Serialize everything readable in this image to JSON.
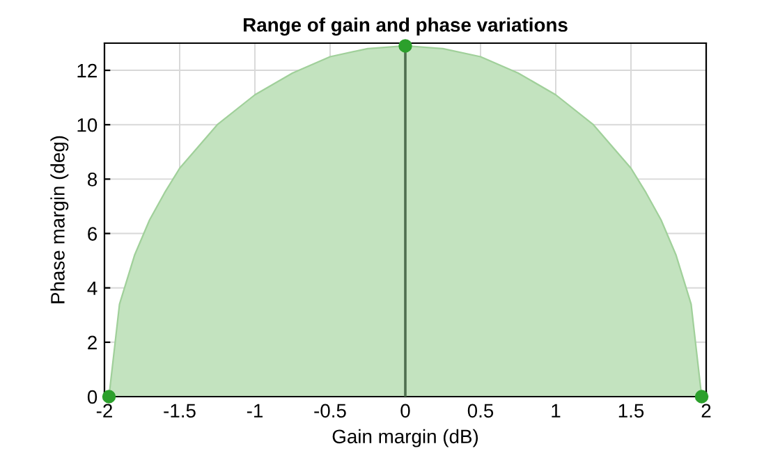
{
  "chart_data": {
    "type": "area",
    "title": "Range of gain and phase variations",
    "xlabel": "Gain margin (dB)",
    "ylabel": "Phase margin (deg)",
    "series": [
      {
        "color": "#c3e3bf",
        "x": [
          -1.97,
          -1.9,
          -1.8,
          -1.7,
          -1.6,
          -1.5,
          -1.25,
          -1.0,
          -0.75,
          -0.5,
          -0.25,
          0,
          0.25,
          0.5,
          0.75,
          1.0,
          1.25,
          1.5,
          1.6,
          1.7,
          1.8,
          1.9,
          1.97
        ],
        "values": [
          0,
          3.4,
          5.2,
          6.5,
          7.5,
          8.4,
          10.0,
          11.1,
          11.9,
          12.5,
          12.8,
          12.9,
          12.8,
          12.5,
          11.9,
          11.1,
          10.0,
          8.4,
          7.5,
          6.5,
          5.2,
          3.4,
          0
        ]
      },
      {
        "type": "line",
        "color": "#4f6f4f",
        "x": [
          0,
          0
        ],
        "values": [
          0,
          12.9
        ]
      },
      {
        "type": "scatter",
        "color": "#2ca02c",
        "marker": "circle",
        "x": [
          -1.97,
          0,
          1.97
        ],
        "values": [
          0,
          12.9,
          0
        ]
      }
    ],
    "xlim": [
      -2,
      2
    ],
    "xticks": [
      -2,
      -1.5,
      -1,
      -0.5,
      0,
      0.5,
      1,
      1.5,
      2
    ],
    "ylim": [
      0,
      13
    ],
    "yticks": [
      0,
      2,
      4,
      6,
      8,
      10,
      12
    ],
    "grid": true
  }
}
